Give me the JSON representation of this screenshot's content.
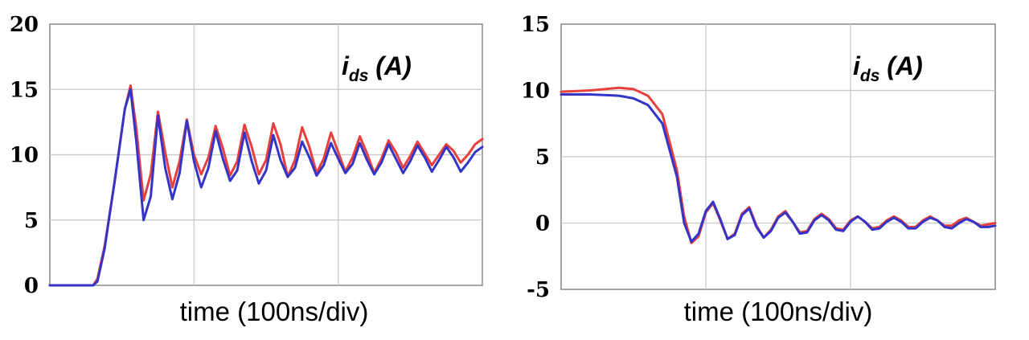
{
  "chart_data": [
    {
      "type": "line",
      "annotation": {
        "main": "i",
        "sub": "ds",
        "unit": " (A)"
      },
      "xlabel": "time (100ns/div)",
      "x_unit": "div",
      "xlim": [
        0,
        3
      ],
      "ylim": [
        0,
        20
      ],
      "yticks": [
        "0",
        "5",
        "10",
        "15",
        "20"
      ],
      "grid": true,
      "series": [
        {
          "color": "#e8403c",
          "x": [
            0,
            0.2,
            0.3,
            0.33,
            0.38,
            0.45,
            0.52,
            0.56,
            0.6,
            0.65,
            0.7,
            0.75,
            0.8,
            0.85,
            0.9,
            0.95,
            1.0,
            1.05,
            1.1,
            1.15,
            1.2,
            1.25,
            1.3,
            1.35,
            1.4,
            1.45,
            1.5,
            1.55,
            1.6,
            1.65,
            1.7,
            1.75,
            1.8,
            1.85,
            1.9,
            1.95,
            2.0,
            2.05,
            2.1,
            2.15,
            2.2,
            2.25,
            2.3,
            2.35,
            2.4,
            2.45,
            2.5,
            2.55,
            2.6,
            2.65,
            2.7,
            2.75,
            2.8,
            2.85,
            2.9,
            2.95,
            3.0
          ],
          "y": [
            0,
            0,
            0,
            0.5,
            3,
            8,
            13.5,
            15.3,
            12,
            6.5,
            8.5,
            13.3,
            10.2,
            7.5,
            9.5,
            12.7,
            10,
            8.5,
            9.8,
            12.2,
            10.5,
            8.4,
            9.5,
            12.3,
            10.6,
            8.5,
            9.6,
            12.4,
            10.8,
            8.3,
            9.6,
            12.1,
            10.6,
            8.6,
            9.7,
            11.7,
            10.2,
            8.7,
            9.8,
            11.4,
            10.1,
            8.6,
            9.7,
            11.1,
            10.2,
            9.0,
            9.9,
            11.0,
            10.1,
            9.2,
            10.0,
            10.8,
            10.3,
            9.4,
            10.0,
            10.8,
            11.2
          ]
        },
        {
          "color": "#3434c8",
          "x": [
            0,
            0.2,
            0.3,
            0.33,
            0.38,
            0.45,
            0.52,
            0.56,
            0.6,
            0.65,
            0.7,
            0.75,
            0.8,
            0.85,
            0.9,
            0.95,
            1.0,
            1.05,
            1.1,
            1.15,
            1.2,
            1.25,
            1.3,
            1.35,
            1.4,
            1.45,
            1.5,
            1.55,
            1.6,
            1.65,
            1.7,
            1.75,
            1.8,
            1.85,
            1.9,
            1.95,
            2.0,
            2.05,
            2.1,
            2.15,
            2.2,
            2.25,
            2.3,
            2.35,
            2.4,
            2.45,
            2.5,
            2.55,
            2.6,
            2.65,
            2.7,
            2.75,
            2.8,
            2.85,
            2.9,
            2.95,
            3.0
          ],
          "y": [
            0,
            0,
            0,
            0.3,
            2.8,
            8,
            13.5,
            15.0,
            11,
            5.0,
            6.8,
            13.0,
            9,
            6.6,
            8.6,
            12.6,
            9.5,
            7.5,
            9.0,
            11.8,
            9.7,
            8.0,
            8.8,
            11.7,
            9.5,
            7.8,
            8.8,
            11.5,
            9.6,
            8.3,
            9.0,
            11.0,
            9.8,
            8.4,
            9.2,
            10.9,
            9.7,
            8.6,
            9.3,
            10.9,
            9.6,
            8.5,
            9.4,
            10.8,
            9.7,
            8.6,
            9.5,
            10.7,
            9.8,
            8.7,
            9.6,
            10.6,
            9.8,
            8.7,
            9.4,
            10.2,
            10.6
          ]
        }
      ]
    },
    {
      "type": "line",
      "annotation": {
        "main": "i",
        "sub": "ds",
        "unit": " (A)"
      },
      "xlabel": "time (100ns/div)",
      "x_unit": "div",
      "xlim": [
        0,
        3
      ],
      "ylim": [
        -5,
        15
      ],
      "yticks": [
        "-5",
        "0",
        "5",
        "10",
        "15"
      ],
      "grid": true,
      "series": [
        {
          "color": "#e8403c",
          "x": [
            0,
            0.2,
            0.4,
            0.5,
            0.6,
            0.7,
            0.8,
            0.85,
            0.9,
            0.95,
            1.0,
            1.05,
            1.1,
            1.15,
            1.2,
            1.25,
            1.3,
            1.35,
            1.4,
            1.45,
            1.5,
            1.55,
            1.6,
            1.65,
            1.7,
            1.75,
            1.8,
            1.85,
            1.9,
            1.95,
            2.0,
            2.05,
            2.1,
            2.15,
            2.2,
            2.25,
            2.3,
            2.35,
            2.4,
            2.45,
            2.5,
            2.55,
            2.6,
            2.65,
            2.7,
            2.75,
            2.8,
            2.85,
            2.9,
            2.95,
            3.0
          ],
          "y": [
            9.9,
            10.0,
            10.2,
            10.1,
            9.6,
            8.2,
            4.0,
            0.5,
            -1.5,
            -1.0,
            0.8,
            1.5,
            0.2,
            -1.2,
            -0.8,
            0.7,
            1.2,
            -0.2,
            -1.1,
            -0.5,
            0.5,
            0.9,
            0.1,
            -0.7,
            -0.6,
            0.3,
            0.7,
            0.3,
            -0.4,
            -0.5,
            0.2,
            0.5,
            0.1,
            -0.4,
            -0.3,
            0.2,
            0.5,
            0.2,
            -0.3,
            -0.3,
            0.2,
            0.5,
            0.2,
            -0.2,
            -0.2,
            0.2,
            0.4,
            0.1,
            -0.2,
            -0.1,
            0.0
          ]
        },
        {
          "color": "#3434c8",
          "x": [
            0,
            0.2,
            0.4,
            0.5,
            0.6,
            0.7,
            0.8,
            0.85,
            0.9,
            0.95,
            1.0,
            1.05,
            1.1,
            1.15,
            1.2,
            1.25,
            1.3,
            1.35,
            1.4,
            1.45,
            1.5,
            1.55,
            1.6,
            1.65,
            1.7,
            1.75,
            1.8,
            1.85,
            1.9,
            1.95,
            2.0,
            2.05,
            2.1,
            2.15,
            2.2,
            2.25,
            2.3,
            2.35,
            2.4,
            2.45,
            2.5,
            2.55,
            2.6,
            2.65,
            2.7,
            2.75,
            2.8,
            2.85,
            2.9,
            2.95,
            3.0
          ],
          "y": [
            9.7,
            9.7,
            9.6,
            9.4,
            8.9,
            7.5,
            3.5,
            0.0,
            -1.4,
            -0.8,
            0.9,
            1.6,
            0.3,
            -1.2,
            -0.9,
            0.6,
            1.1,
            -0.3,
            -1.1,
            -0.6,
            0.4,
            0.8,
            0.1,
            -0.8,
            -0.7,
            0.2,
            0.6,
            0.2,
            -0.5,
            -0.6,
            0.1,
            0.5,
            0.1,
            -0.5,
            -0.4,
            0.1,
            0.4,
            0.1,
            -0.4,
            -0.4,
            0.1,
            0.4,
            0.2,
            -0.3,
            -0.4,
            0.0,
            0.3,
            0.1,
            -0.3,
            -0.3,
            -0.2
          ]
        }
      ]
    }
  ]
}
